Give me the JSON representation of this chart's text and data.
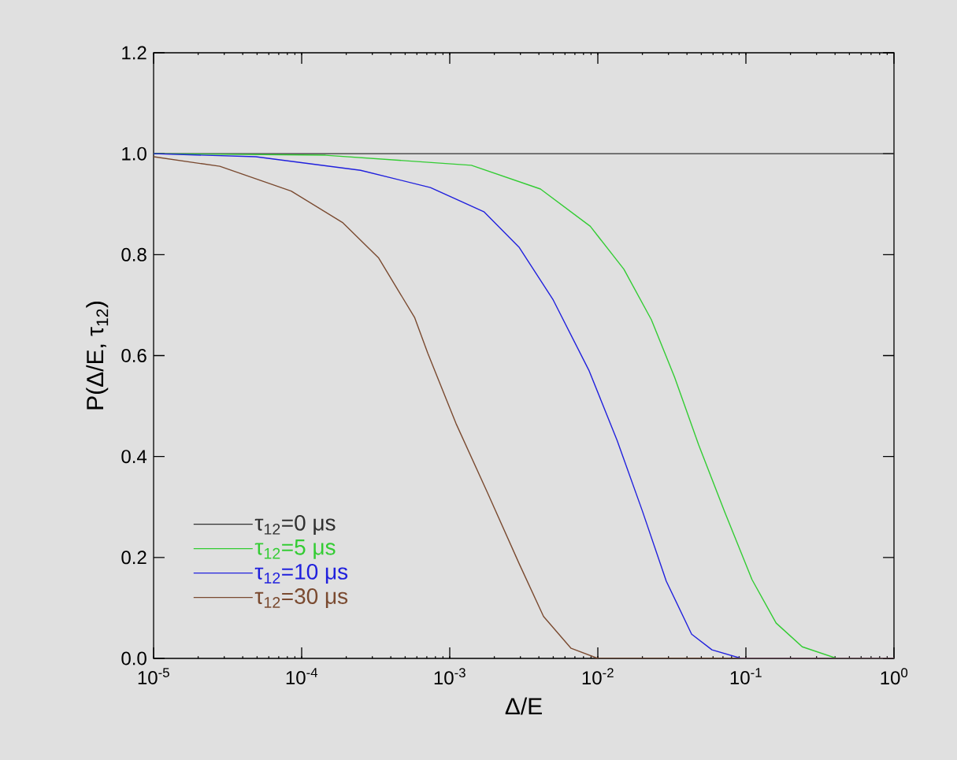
{
  "chart_data": {
    "type": "line",
    "xlabel": "Δ/E",
    "ylabel": "P(Δ/E, τ$_{12}$)",
    "log": "x",
    "legend": "bottom left",
    "xlim": [
      1e-05,
      1
    ],
    "ylim": [
      0,
      1.2
    ],
    "xticks": [
      {
        "value": 1e-05,
        "label": "10$^{-5}$"
      },
      {
        "value": 0.0001,
        "label": "10$^{-4}$"
      },
      {
        "value": 0.001,
        "label": "10$^{-3}$"
      },
      {
        "value": 0.01,
        "label": "10$^{-2}$"
      },
      {
        "value": 0.1,
        "label": "10$^{-1}$"
      },
      {
        "value": 1,
        "label": "10$^{0}$"
      }
    ],
    "yticks": [
      {
        "value": 0,
        "label": "0.0"
      },
      {
        "value": 0.2,
        "label": "0.2"
      },
      {
        "value": 0.4,
        "label": "0.4"
      },
      {
        "value": 0.6,
        "label": "0.6"
      },
      {
        "value": 0.8,
        "label": "0.8"
      },
      {
        "value": 1,
        "label": "1.0"
      },
      {
        "value": 1.2,
        "label": "1.2"
      }
    ],
    "series": [
      {
        "name": "τ$_{12}$=0 μs",
        "color": "#303030",
        "x": [
          1e-05,
          1
        ],
        "values": [
          1,
          1
        ]
      },
      {
        "name": "τ$_{12}$=5 μs",
        "color": "#33cc33",
        "x": [
          1e-05,
          0.000145,
          0.0014,
          0.0041,
          0.0089,
          0.015,
          0.023,
          0.033,
          0.048,
          0.072,
          0.11,
          0.16,
          0.24,
          0.41,
          1
        ],
        "values": [
          1,
          0.997,
          0.977,
          0.93,
          0.856,
          0.771,
          0.671,
          0.557,
          0.423,
          0.29,
          0.156,
          0.07,
          0.023,
          0,
          0
        ]
      },
      {
        "name": "τ$_{12}$=10 μs",
        "color": "#2020dd",
        "x": [
          1e-05,
          4.9e-05,
          0.00025,
          0.00074,
          0.0017,
          0.00295,
          0.005,
          0.0087,
          0.0135,
          0.02,
          0.029,
          0.043,
          0.059,
          0.093,
          1
        ],
        "values": [
          1,
          0.994,
          0.967,
          0.933,
          0.885,
          0.814,
          0.71,
          0.571,
          0.432,
          0.292,
          0.153,
          0.048,
          0.017,
          0,
          0
        ]
      },
      {
        "name": "τ$_{12}$=30 μs",
        "color": "#7a4a30",
        "x": [
          1e-05,
          2.8e-05,
          8.5e-05,
          0.00019,
          0.00033,
          0.00058,
          0.00071,
          0.0011,
          0.0018,
          0.00295,
          0.0043,
          0.0066,
          0.01,
          1
        ],
        "values": [
          0.994,
          0.975,
          0.926,
          0.863,
          0.794,
          0.675,
          0.605,
          0.466,
          0.328,
          0.187,
          0.083,
          0.02,
          0,
          0
        ]
      }
    ]
  }
}
